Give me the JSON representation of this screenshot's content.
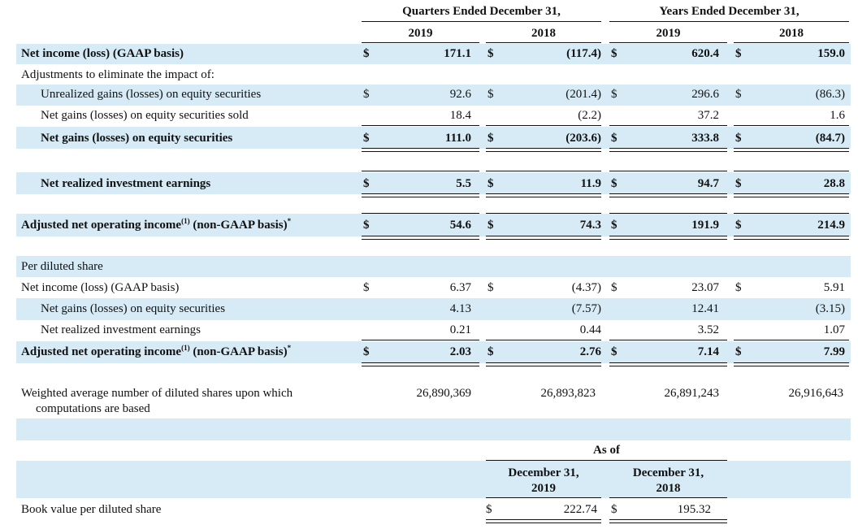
{
  "header": {
    "quarters": "Quarters Ended December 31,",
    "years": "Years Ended December 31,",
    "q2019": "2019",
    "q2018": "2018",
    "y2019": "2019",
    "y2018": "2018"
  },
  "currency": "$",
  "rows": {
    "net_income": {
      "label": "Net income (loss) (GAAP basis)",
      "v": [
        "171.1",
        "(117.4)",
        "620.4",
        "159.0"
      ]
    },
    "adjustments": {
      "label": "Adjustments to eliminate the impact of:"
    },
    "unrealized": {
      "label": "Unrealized gains (losses) on equity securities",
      "v": [
        "92.6",
        "(201.4)",
        "296.6",
        "(86.3)"
      ]
    },
    "sold": {
      "label": "Net gains (losses) on equity securities sold",
      "v": [
        "18.4",
        "(2.2)",
        "37.2",
        "1.6"
      ]
    },
    "net_gains": {
      "label": "Net gains (losses) on equity securities",
      "v": [
        "111.0",
        "(203.6)",
        "333.8",
        "(84.7)"
      ]
    },
    "realized": {
      "label": "Net realized investment earnings",
      "v": [
        "5.5",
        "11.9",
        "94.7",
        "28.8"
      ]
    },
    "adjusted": {
      "label_a": "Adjusted net operating income",
      "label_sup": "(1)",
      "label_b": " (non-GAAP basis)",
      "label_star": "*",
      "v": [
        "54.6",
        "74.3",
        "191.9",
        "214.9"
      ]
    },
    "per_share": {
      "label": "Per diluted share"
    },
    "ps_net_income": {
      "label": "Net income (loss) (GAAP basis)",
      "v": [
        "6.37",
        "(4.37)",
        "23.07",
        "5.91"
      ]
    },
    "ps_net_gains": {
      "label": "Net gains (losses) on equity securities",
      "v": [
        "4.13",
        "(7.57)",
        "12.41",
        "(3.15)"
      ]
    },
    "ps_realized": {
      "label": "Net realized investment earnings",
      "v": [
        "0.21",
        "0.44",
        "3.52",
        "1.07"
      ]
    },
    "ps_adjusted": {
      "label_a": "Adjusted net operating income",
      "label_sup": "(1)",
      "label_b": " (non-GAAP basis)",
      "label_star": "*",
      "v": [
        "2.03",
        "2.76",
        "7.14",
        "7.99"
      ]
    },
    "weighted": {
      "label_1": "Weighted average number of diluted shares upon which",
      "label_2": "computations are based",
      "v": [
        "26,890,369",
        "26,893,823",
        "26,891,243",
        "26,916,643"
      ]
    }
  },
  "book": {
    "as_of": "As of",
    "col1_line1": "December 31,",
    "col1_line2": "2019",
    "col2_line1": "December 31,",
    "col2_line2": "2018",
    "label": "Book value per diluted share",
    "v": [
      "222.74",
      "195.32"
    ]
  }
}
